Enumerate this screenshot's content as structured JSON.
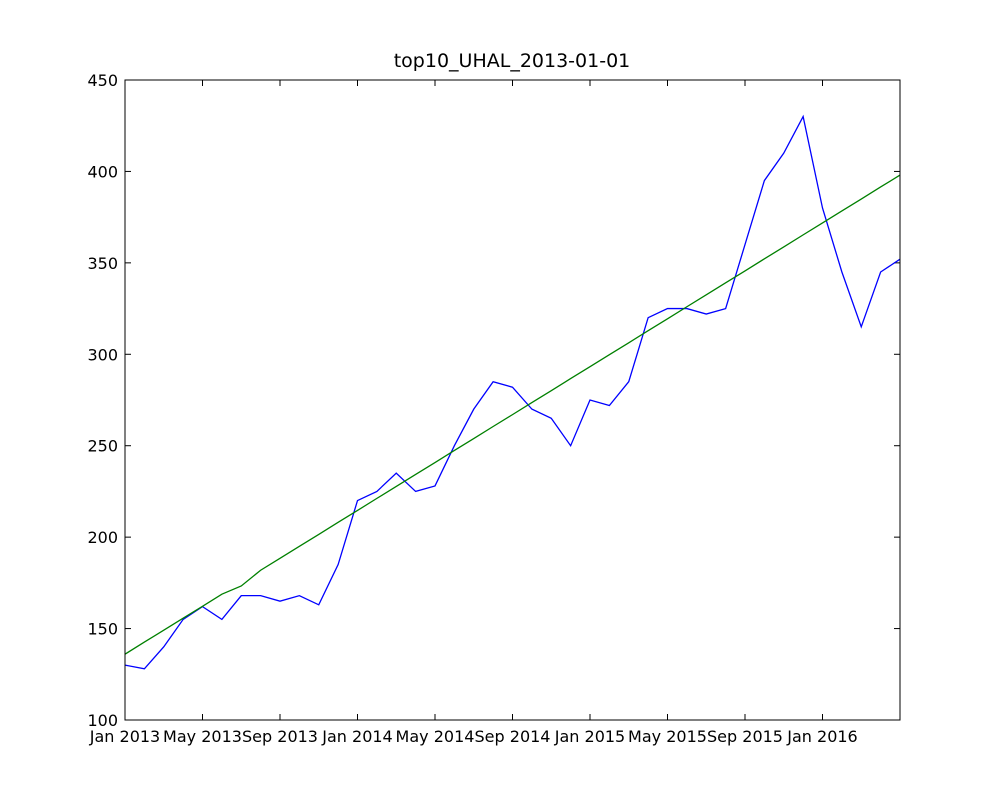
{
  "chart_data": {
    "type": "line",
    "title": "top10_UHAL_2013-01-01",
    "x": [
      "2013-01",
      "2013-02",
      "2013-03",
      "2013-04",
      "2013-05",
      "2013-06",
      "2013-07",
      "2013-08",
      "2013-09",
      "2013-10",
      "2013-11",
      "2013-12",
      "2014-01",
      "2014-02",
      "2014-03",
      "2014-04",
      "2014-05",
      "2014-06",
      "2014-07",
      "2014-08",
      "2014-09",
      "2014-10",
      "2014-11",
      "2014-12",
      "2015-01",
      "2015-02",
      "2015-03",
      "2015-04",
      "2015-05",
      "2015-06",
      "2015-07",
      "2015-08",
      "2015-09",
      "2015-10",
      "2015-11",
      "2015-12",
      "2016-01",
      "2016-02",
      "2016-03",
      "2016-04",
      "2016-05"
    ],
    "series": [
      {
        "color": "#0000ff",
        "values": [
          130,
          128,
          140,
          155,
          162,
          155,
          168,
          168,
          165,
          168,
          163,
          185,
          220,
          225,
          235,
          225,
          228,
          250,
          270,
          285,
          282,
          270,
          265,
          250,
          275,
          272,
          285,
          320,
          325,
          325,
          322,
          325,
          360,
          395,
          410,
          430,
          380,
          345,
          315,
          345,
          352
        ]
      },
      {
        "color": "#008000",
        "values": [
          136,
          142.6,
          149.1,
          155.7,
          162.2,
          168.8,
          173.3,
          181.9,
          188.4,
          195,
          201.5,
          208.1,
          214.6,
          221.2,
          227.7,
          234.3,
          240.8,
          247.4,
          253.9,
          260.5,
          267,
          273.6,
          280.1,
          286.7,
          293.2,
          299.8,
          306.3,
          312.9,
          319.4,
          326,
          332.5,
          339.1,
          345.6,
          352.2,
          358.7,
          365.3,
          371.8,
          378.4,
          384.9,
          391.5,
          398
        ]
      }
    ],
    "xlim": [
      "2013-01",
      "2016-05"
    ],
    "xticks": [
      {
        "value": "2013-01",
        "label": "Jan 2013"
      },
      {
        "value": "2013-05",
        "label": "May 2013"
      },
      {
        "value": "2013-09",
        "label": "Sep 2013"
      },
      {
        "value": "2014-01",
        "label": "Jan 2014"
      },
      {
        "value": "2014-05",
        "label": "May 2014"
      },
      {
        "value": "2014-09",
        "label": "Sep 2014"
      },
      {
        "value": "2015-01",
        "label": "Jan 2015"
      },
      {
        "value": "2015-05",
        "label": "May 2015"
      },
      {
        "value": "2015-09",
        "label": "Sep 2015"
      },
      {
        "value": "2016-01",
        "label": "Jan 2016"
      }
    ],
    "ylim": [
      100,
      450
    ],
    "yticks": [
      100,
      150,
      200,
      250,
      300,
      350,
      400,
      450
    ],
    "grid": false
  }
}
